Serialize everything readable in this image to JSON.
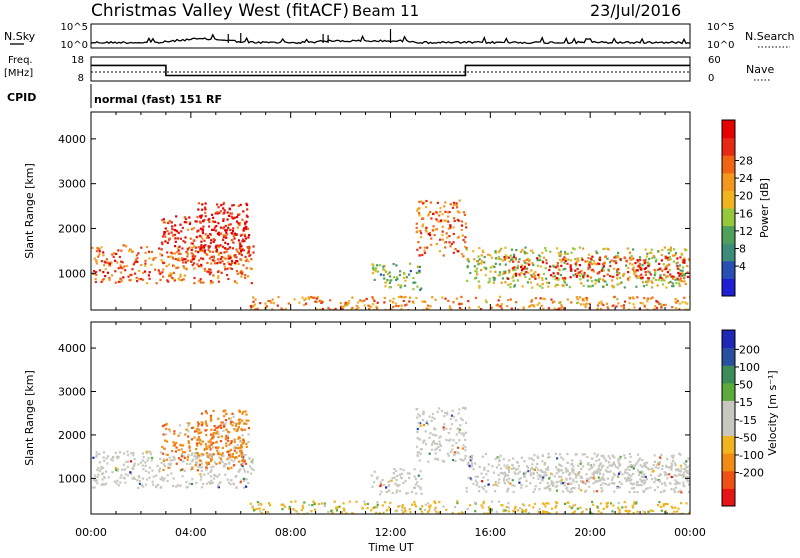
{
  "header": {
    "title": "Christmas Valley West (fitACF)",
    "beam": "Beam 11",
    "date": "23/Jul/2016"
  },
  "sky_panel": {
    "left_label": "N.Sky",
    "right_label": "N.Search",
    "tick_top": "10^5",
    "tick_bottom": "10^0"
  },
  "freq_panel": {
    "left_label_line1": "Freq.",
    "left_label_line2": "[MHz]",
    "right_label": "Nave",
    "left_ticks": [
      "18",
      "8"
    ],
    "right_ticks": [
      "60",
      "0"
    ]
  },
  "cpid": {
    "label": "CPID",
    "value": "normal (fast) 151 RF"
  },
  "power_panel": {
    "ylabel": "Slant Range [km]",
    "yticks": [
      "4000",
      "3000",
      "2000",
      "1000"
    ],
    "colorbar_label": "Power [dB]",
    "colorbar_ticks": [
      "28",
      "24",
      "20",
      "16",
      "12",
      "8",
      "4"
    ],
    "colors": [
      "#1e1ed2",
      "#2850b4",
      "#3c8c78",
      "#4fa05a",
      "#96c83c",
      "#f0b41e",
      "#f5961e",
      "#f06414",
      "#e62814",
      "#e60000"
    ]
  },
  "velocity_panel": {
    "ylabel": "Slant Range [km]",
    "yticks": [
      "4000",
      "3000",
      "2000",
      "1000"
    ],
    "colorbar_label": "Velocity [m s⁻¹]",
    "colorbar_ticks": [
      "200",
      "100",
      "50",
      "15",
      "-15",
      "-50",
      "-100",
      "-200"
    ],
    "colors": [
      "#1e28b4",
      "#2850a0",
      "#3c8c5a",
      "#5aaa3c",
      "#c8c8be",
      "#c8c8be",
      "#f0b41e",
      "#f08c14",
      "#f05014",
      "#e61414"
    ]
  },
  "xaxis": {
    "label": "Time UT",
    "ticks": [
      "00:00",
      "04:00",
      "08:00",
      "12:00",
      "16:00",
      "20:00",
      "00:00"
    ]
  },
  "chart_data": {
    "type": "heatmap",
    "x_range_hours": [
      0,
      24
    ],
    "y_range_km": [
      180,
      4600
    ],
    "frequency_mhz": [
      {
        "from": 0,
        "to": 3,
        "value": 14.5
      },
      {
        "from": 3,
        "to": 15,
        "value": 10.3
      },
      {
        "from": 15,
        "to": 24,
        "value": 14.5
      }
    ],
    "power_regions": [
      {
        "t": [
          0,
          6.5
        ],
        "r": [
          800,
          1650
        ],
        "db": 22
      },
      {
        "t": [
          2.8,
          6.2
        ],
        "r": [
          1200,
          2300
        ],
        "db": 26
      },
      {
        "t": [
          4.2,
          6.3
        ],
        "r": [
          1500,
          2600
        ],
        "db": 28
      },
      {
        "t": [
          11.2,
          13.2
        ],
        "r": [
          650,
          1250
        ],
        "db": 10
      },
      {
        "t": [
          13,
          15
        ],
        "r": [
          1400,
          2650
        ],
        "db": 22
      },
      {
        "t": [
          15,
          24
        ],
        "r": [
          700,
          1600
        ],
        "db": 14
      },
      {
        "t": [
          16.5,
          24
        ],
        "r": [
          900,
          1400
        ],
        "db": 26
      },
      {
        "t": [
          6.3,
          24
        ],
        "r": [
          200,
          500
        ],
        "db": 20
      }
    ]
  }
}
